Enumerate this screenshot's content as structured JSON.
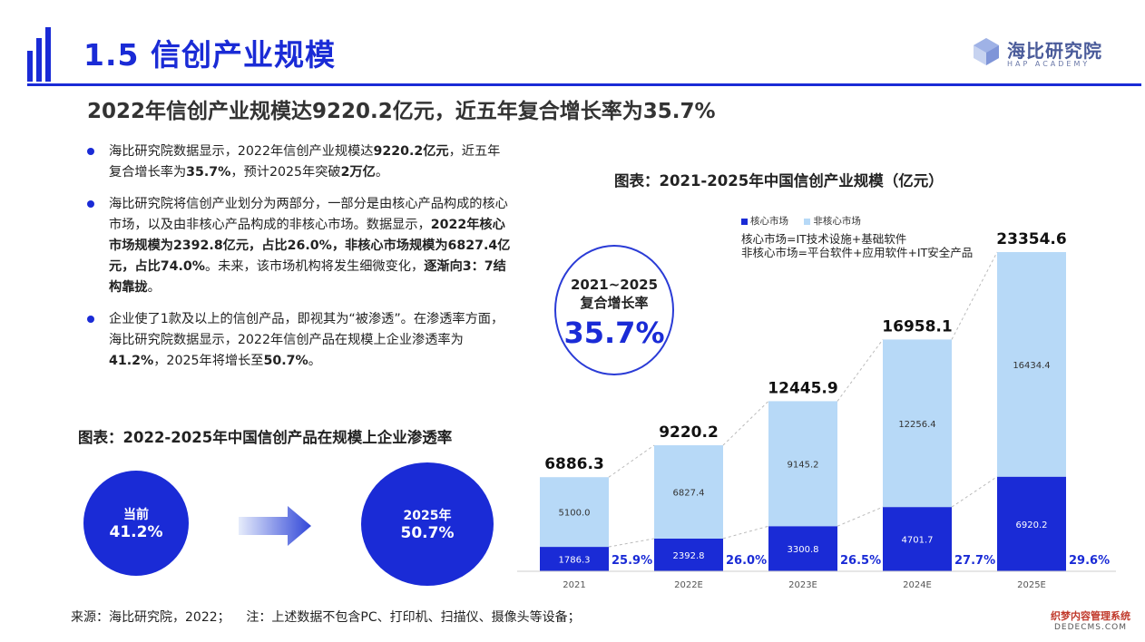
{
  "header": {
    "title": "1.5 信创产业规模",
    "subtitle": "2022年信创产业规模达9220.2亿元，近五年复合增长率为35.7%",
    "logo_text": "海比研究院",
    "logo_sub": "HAP ACADEMY"
  },
  "bullets": [
    {
      "parts": [
        {
          "t": "海比研究院数据显示，2022年信创产业规模达",
          "b": false
        },
        {
          "t": "9220.2亿元",
          "b": true
        },
        {
          "t": "，近五年复合增长率为",
          "b": false
        },
        {
          "t": "35.7%",
          "b": true
        },
        {
          "t": "，预计2025年突破",
          "b": false
        },
        {
          "t": "2万亿",
          "b": true
        },
        {
          "t": "。",
          "b": false
        }
      ]
    },
    {
      "parts": [
        {
          "t": "海比研究院将信创产业划分为两部分，一部分是由核心产品构成的核心市场，以及由非核心产品构成的非核心市场。数据显示，",
          "b": false
        },
        {
          "t": "2022年核心市场规模为2392.8亿元，占比26.0%，非核心市场规模为6827.4亿元，占比74.0%",
          "b": true
        },
        {
          "t": "。未来，该市场机构将发生细微变化，",
          "b": false
        },
        {
          "t": "逐渐向3：7结构靠拢",
          "b": true
        },
        {
          "t": "。",
          "b": false
        }
      ]
    },
    {
      "parts": [
        {
          "t": "企业使了1款及以上的信创产品，即视其为“被渗透”。在渗透率方面，海比研究院数据显示，2022年信创产品在规模上企业渗透率为",
          "b": false
        },
        {
          "t": "41.2%",
          "b": true
        },
        {
          "t": "，2025年将增长至",
          "b": false
        },
        {
          "t": "50.7%",
          "b": true
        },
        {
          "t": "。",
          "b": false
        }
      ]
    }
  ],
  "penetration": {
    "title": "图表：2022-2025年中国信创产品在规模上企业渗透率",
    "current_label": "当前",
    "current_value": "41.2%",
    "future_label": "2025年",
    "future_value": "50.7%"
  },
  "cagr": {
    "period": "2021~2025",
    "label": "复合增长率",
    "value": "35.7%"
  },
  "chart_data": {
    "type": "bar",
    "stacked": true,
    "title": "图表：2021-2025年中国信创产业规模（亿元）",
    "categories": [
      "2021",
      "2022E",
      "2023E",
      "2024E",
      "2025E"
    ],
    "series": [
      {
        "name": "核心市场",
        "color": "#1a2bd6",
        "values": [
          1786.3,
          2392.8,
          3300.8,
          4701.7,
          6920.2
        ]
      },
      {
        "name": "非核心市场",
        "color": "#b7d9f7",
        "values": [
          5100.0,
          6827.4,
          9145.2,
          12256.4,
          16434.4
        ]
      }
    ],
    "value_labels": {
      "core": [
        "1786.3",
        "2392.8",
        "3300.8",
        "4701.7",
        "6920.2"
      ],
      "noncore": [
        "5100.0",
        "6827.4",
        "9145.2",
        "12256.4",
        "16434.4"
      ]
    },
    "totals": [
      "6886.3",
      "9220.2",
      "12445.9",
      "16958.1",
      "23354.6"
    ],
    "total_values": [
      6886.3,
      9220.2,
      12445.9,
      16958.1,
      23354.6
    ],
    "core_share": [
      "25.9%",
      "26.0%",
      "26.5%",
      "27.7%",
      "29.6%"
    ],
    "notes": [
      "核心市场=IT技术设施+基础软件",
      "非核心市场=平台软件+应用软件+IT安全产品"
    ],
    "ylim": [
      0,
      23354.6
    ]
  },
  "footer": {
    "source": "来源：海比研究院，2022；    注：上述数据不包含PC、打印机、扫描仪、摄像头等设备；",
    "watermark_1": "织梦内容管理系统",
    "watermark_2": "DEDECMS.COM"
  },
  "colors": {
    "accent": "#1a2bd6",
    "light": "#b7d9f7"
  }
}
